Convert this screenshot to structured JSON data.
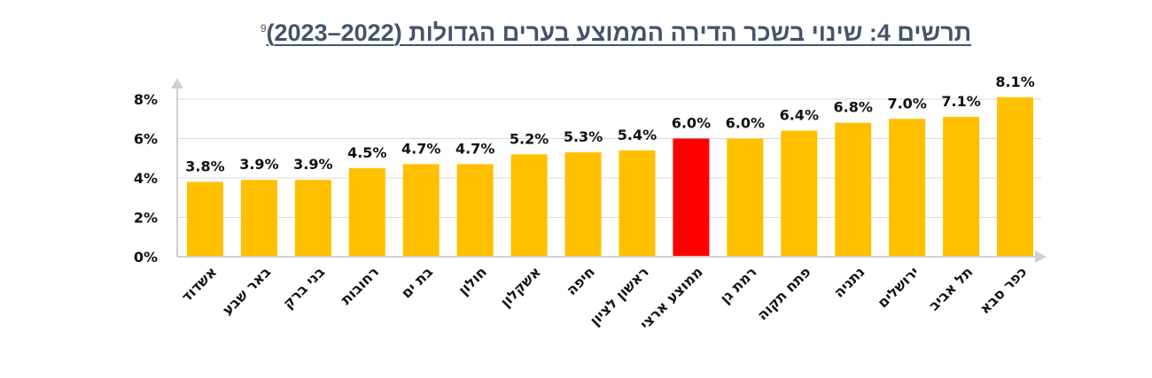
{
  "chart_data": {
    "type": "bar",
    "title": "תרשים 4: שינוי בשכר הדירה הממוצע בערים הגדולות (2022–2023)",
    "footnote": "9",
    "categories": [
      "אשדוד",
      "באר שבע",
      "בני ברק",
      "רחובות",
      "בת ים",
      "חולון",
      "אשקלון",
      "חיפה",
      "ראשון לציון",
      "ממוצע ארצי",
      "רמת גן",
      "פתח תקוה",
      "נתניה",
      "ירושלים",
      "תל אביב",
      "כפר סבא"
    ],
    "values": [
      3.8,
      3.9,
      3.9,
      4.5,
      4.7,
      4.7,
      5.2,
      5.3,
      5.4,
      6.0,
      6.0,
      6.4,
      6.8,
      7.0,
      7.1,
      8.1
    ],
    "data_labels": [
      "3.8%",
      "3.9%",
      "3.9%",
      "4.5%",
      "4.7%",
      "4.7%",
      "5.2%",
      "5.3%",
      "5.4%",
      "6.0%",
      "6.0%",
      "6.4%",
      "6.8%",
      "7.0%",
      "7.1%",
      "8.1%"
    ],
    "highlight_category": "ממוצע ארצי",
    "colors": {
      "bar": "#ffc000",
      "highlight": "#ff0000",
      "grid": "#d9d9d9",
      "axis": "#d0d0d0"
    },
    "yticks": [
      "0%",
      "2%",
      "4%",
      "6%",
      "8%"
    ],
    "ytick_values": [
      0,
      2,
      4,
      6,
      8
    ],
    "ylim": [
      0,
      8
    ],
    "grid": true,
    "xlabel": "",
    "ylabel": ""
  }
}
